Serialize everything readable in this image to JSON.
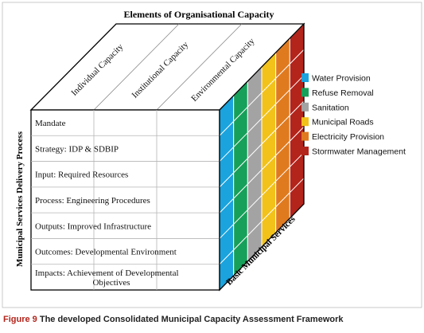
{
  "top_title": "Elements of Organisational Capacity",
  "left_axis_title": "Municipal Services Delivery Process",
  "bottom_axis_title": "Basic Municipal Services",
  "top_columns": [
    "Individual Capacity",
    "Institutional Capacity",
    "Environmental Capacity"
  ],
  "rows": [
    {
      "label": "Mandate"
    },
    {
      "label": "Strategy: IDP & SDBIP"
    },
    {
      "label": "Input: Required Resources"
    },
    {
      "label": "Process: Engineering Procedures"
    },
    {
      "label": "Outputs: Improved Infrastructure"
    },
    {
      "label": "Outcomes: Developmental Environment"
    },
    {
      "label": "Impacts: Achievement of Developmental",
      "label2": "Objectives"
    }
  ],
  "services": [
    {
      "name": "Water Provision",
      "color": "#1aa3dd"
    },
    {
      "name": "Refuse Removal",
      "color": "#17a05a"
    },
    {
      "name": "Sanitation",
      "color": "#a3a3a3"
    },
    {
      "name": "Municipal Roads",
      "color": "#f2c21b"
    },
    {
      "name": "Electricity Provision",
      "color": "#e07a1f"
    },
    {
      "name": "Stormwater Management",
      "color": "#b3241b"
    }
  ],
  "caption": {
    "prefix": "Figure 9",
    "text": " The developed Consolidated Municipal Capacity Assessment Framework"
  }
}
